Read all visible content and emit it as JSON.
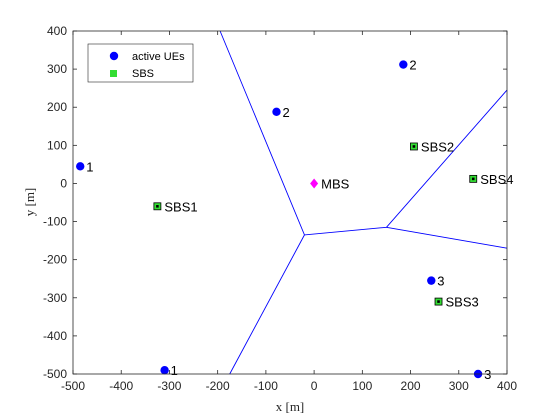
{
  "chart_data": {
    "type": "scatter",
    "xlabel": "x [m]",
    "ylabel": "y [m]",
    "xlim": [
      -500,
      400
    ],
    "ylim": [
      -500,
      400
    ],
    "xticks": [
      -500,
      -400,
      -300,
      -200,
      -100,
      0,
      100,
      200,
      300,
      400
    ],
    "yticks": [
      -500,
      -400,
      -300,
      -200,
      -100,
      0,
      100,
      200,
      300,
      400
    ],
    "grid": false,
    "legend_position": "top-left",
    "colors": {
      "ue": "#0000ff",
      "sbs": "#33dd33",
      "mbs": "#ff00ff",
      "boundary": "#0000ff",
      "axis": "#262626"
    },
    "series": [
      {
        "name": "active UEs",
        "marker": "circle",
        "points": [
          {
            "x": -485,
            "y": 45,
            "label": "1"
          },
          {
            "x": -310,
            "y": -490,
            "label": "1"
          },
          {
            "x": -78,
            "y": 188,
            "label": "2"
          },
          {
            "x": 185,
            "y": 312,
            "label": "2"
          },
          {
            "x": 243,
            "y": -255,
            "label": "3"
          },
          {
            "x": 340,
            "y": -500,
            "label": "3"
          }
        ]
      },
      {
        "name": "SBS",
        "marker": "square",
        "points": [
          {
            "x": -325,
            "y": -60,
            "label": "SBS1"
          },
          {
            "x": 207,
            "y": 97,
            "label": "SBS2"
          },
          {
            "x": 258,
            "y": -310,
            "label": "SBS3"
          },
          {
            "x": 330,
            "y": 12,
            "label": "SBS4"
          }
        ]
      }
    ],
    "mbs": {
      "x": 0,
      "y": 0,
      "label": "MBS",
      "marker": "diamond"
    },
    "boundaries": [
      [
        [
          -195,
          400
        ],
        [
          -20,
          -135
        ],
        [
          150,
          -115
        ],
        [
          400,
          245
        ]
      ],
      [
        [
          -20,
          -135
        ],
        [
          -175,
          -500
        ]
      ],
      [
        [
          150,
          -115
        ],
        [
          400,
          -170
        ]
      ]
    ]
  }
}
